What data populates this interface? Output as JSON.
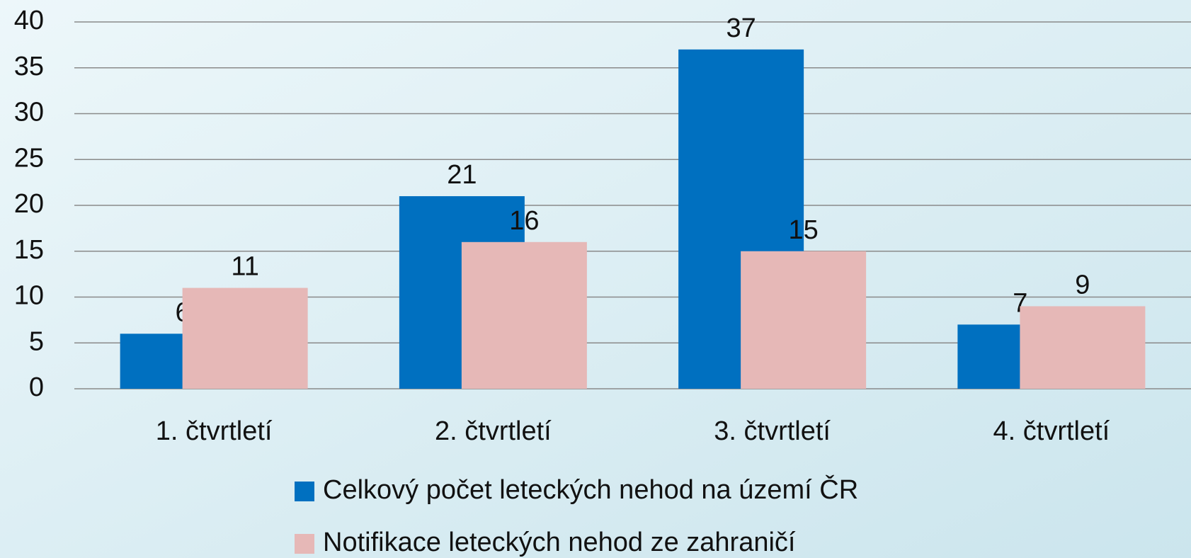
{
  "chart_data": {
    "type": "bar",
    "categories": [
      "1. čtvrtletí",
      "2. čtvrtletí",
      "3. čtvrtletí",
      "4. čtvrtletí"
    ],
    "series": [
      {
        "name": "Celkový počet leteckých nehod na území ČR",
        "color": "#0070c0",
        "values": [
          6,
          21,
          37,
          7
        ]
      },
      {
        "name": "Notifikace leteckých nehod ze zahraničí",
        "color": "#e6b8b7",
        "values": [
          11,
          16,
          15,
          9
        ]
      }
    ],
    "ylim": [
      0,
      40
    ],
    "yticks": [
      0,
      5,
      10,
      15,
      20,
      25,
      30,
      35,
      40
    ],
    "grid": true,
    "legend": "bottom"
  }
}
